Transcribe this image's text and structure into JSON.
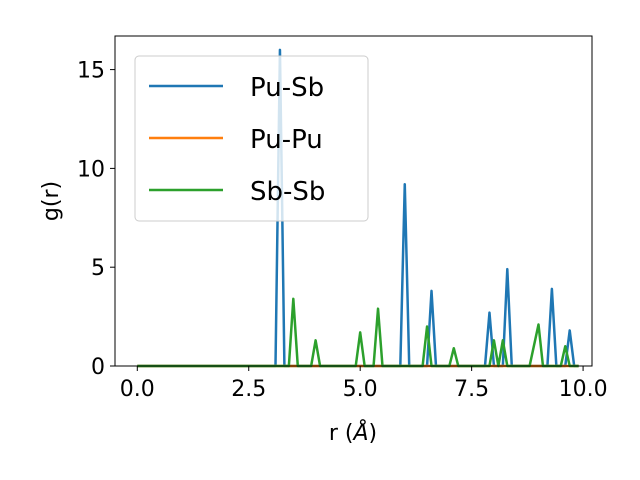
{
  "chart_data": {
    "type": "line",
    "title": "",
    "xlabel_prefix": "r (",
    "xlabel_symbol": "Å",
    "xlabel_suffix": ")",
    "ylabel": "g(r)",
    "xlim": [
      -0.5,
      10.2
    ],
    "ylim": [
      0,
      16.7
    ],
    "xticks": [
      0.0,
      2.5,
      5.0,
      7.5,
      10.0
    ],
    "xtick_labels": [
      "0.0",
      "2.5",
      "5.0",
      "7.5",
      "10.0"
    ],
    "yticks": [
      0,
      5,
      10,
      15
    ],
    "ytick_labels": [
      "0",
      "5",
      "10",
      "15"
    ],
    "grid": false,
    "legend_position": "upper-left",
    "series": [
      {
        "name": "Pu-Sb",
        "color": "#1f77b4",
        "x": [
          0.0,
          3.1,
          3.2,
          3.3,
          3.4,
          5.9,
          6.0,
          6.1,
          6.5,
          6.6,
          6.7,
          7.8,
          7.9,
          8.0,
          8.2,
          8.3,
          8.4,
          9.2,
          9.3,
          9.4,
          9.6,
          9.7,
          9.8,
          9.9
        ],
        "y": [
          0.0,
          0.0,
          16.0,
          0.0,
          0.0,
          0.0,
          9.2,
          0.0,
          0.0,
          3.8,
          0.0,
          0.0,
          2.7,
          0.0,
          0.0,
          4.9,
          0.0,
          0.0,
          3.9,
          0.0,
          0.0,
          1.8,
          0.0,
          0.0
        ]
      },
      {
        "name": "Pu-Pu",
        "color": "#ff7f0e",
        "x": [
          0.0,
          9.9
        ],
        "y": [
          0.0,
          0.0
        ]
      },
      {
        "name": "Sb-Sb",
        "color": "#2ca02c",
        "x": [
          0.0,
          3.4,
          3.5,
          3.6,
          3.9,
          4.0,
          4.1,
          4.9,
          5.0,
          5.1,
          5.3,
          5.4,
          5.5,
          6.4,
          6.5,
          6.6,
          7.0,
          7.1,
          7.2,
          7.9,
          8.0,
          8.1,
          8.2,
          8.3,
          8.8,
          9.0,
          9.1,
          9.5,
          9.6,
          9.7,
          9.9
        ],
        "y": [
          0.0,
          0.0,
          3.4,
          0.0,
          0.0,
          1.3,
          0.0,
          0.0,
          1.7,
          0.0,
          0.0,
          2.9,
          0.0,
          0.0,
          2.0,
          0.0,
          0.0,
          0.9,
          0.0,
          0.0,
          1.3,
          0.0,
          1.3,
          0.0,
          0.0,
          2.1,
          0.0,
          0.0,
          1.0,
          0.0,
          0.0
        ]
      }
    ]
  }
}
